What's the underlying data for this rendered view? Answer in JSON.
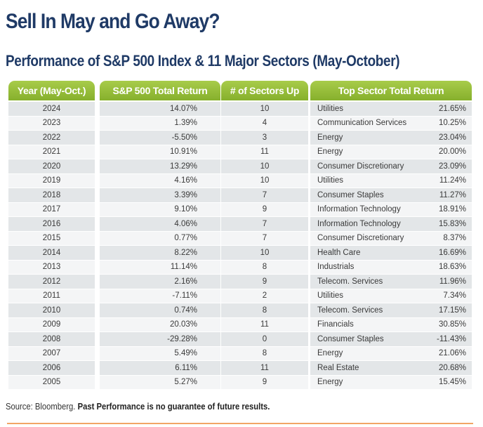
{
  "title": "Sell In May and Go Away?",
  "subtitle": "Performance of S&P 500 Index & 11 Major Sectors (May-October)",
  "headers": {
    "year": "Year (May-Oct.)",
    "sp500": "S&P 500 Total Return",
    "sectors_up": "# of Sectors Up",
    "top_sector": "Top Sector Total Return"
  },
  "rows": [
    {
      "year": "2024",
      "sp500": "14.07%",
      "up": "10",
      "sector": "Utilities",
      "sector_return": "21.65%"
    },
    {
      "year": "2023",
      "sp500": "1.39%",
      "up": "4",
      "sector": "Communication Services",
      "sector_return": "10.25%"
    },
    {
      "year": "2022",
      "sp500": "-5.50%",
      "up": "3",
      "sector": "Energy",
      "sector_return": "23.04%"
    },
    {
      "year": "2021",
      "sp500": "10.91%",
      "up": "11",
      "sector": "Energy",
      "sector_return": "20.00%"
    },
    {
      "year": "2020",
      "sp500": "13.29%",
      "up": "10",
      "sector": "Consumer Discretionary",
      "sector_return": "23.09%"
    },
    {
      "year": "2019",
      "sp500": "4.16%",
      "up": "10",
      "sector": "Utilities",
      "sector_return": "11.24%"
    },
    {
      "year": "2018",
      "sp500": "3.39%",
      "up": "7",
      "sector": "Consumer Staples",
      "sector_return": "11.27%"
    },
    {
      "year": "2017",
      "sp500": "9.10%",
      "up": "9",
      "sector": "Information Technology",
      "sector_return": "18.91%"
    },
    {
      "year": "2016",
      "sp500": "4.06%",
      "up": "7",
      "sector": "Information Technology",
      "sector_return": "15.83%"
    },
    {
      "year": "2015",
      "sp500": "0.77%",
      "up": "7",
      "sector": "Consumer Discretionary",
      "sector_return": "8.37%"
    },
    {
      "year": "2014",
      "sp500": "8.22%",
      "up": "10",
      "sector": "Health Care",
      "sector_return": "16.69%"
    },
    {
      "year": "2013",
      "sp500": "11.14%",
      "up": "8",
      "sector": "Industrials",
      "sector_return": "18.63%"
    },
    {
      "year": "2012",
      "sp500": "2.16%",
      "up": "9",
      "sector": "Telecom. Services",
      "sector_return": "11.96%"
    },
    {
      "year": "2011",
      "sp500": "-7.11%",
      "up": "2",
      "sector": "Utilities",
      "sector_return": "7.34%"
    },
    {
      "year": "2010",
      "sp500": "0.74%",
      "up": "8",
      "sector": "Telecom. Services",
      "sector_return": "17.15%"
    },
    {
      "year": "2009",
      "sp500": "20.03%",
      "up": "11",
      "sector": "Financials",
      "sector_return": "30.85%"
    },
    {
      "year": "2008",
      "sp500": "-29.28%",
      "up": "0",
      "sector": "Consumer Staples",
      "sector_return": "-11.43%"
    },
    {
      "year": "2007",
      "sp500": "5.49%",
      "up": "8",
      "sector": "Energy",
      "sector_return": "21.06%"
    },
    {
      "year": "2006",
      "sp500": "6.11%",
      "up": "11",
      "sector": "Real Estate",
      "sector_return": "20.68%"
    },
    {
      "year": "2005",
      "sp500": "5.27%",
      "up": "9",
      "sector": "Energy",
      "sector_return": "15.45%"
    }
  ],
  "source_prefix": "Source: Bloomberg.",
  "source_disclaimer": "Past Performance is no guarantee of future results.",
  "colors": {
    "title": "#1f3a66",
    "header_green": "#94bd38",
    "row_dark": "#e3e6e8",
    "row_light": "#f4f5f6",
    "footer_rule": "#f2a566"
  }
}
